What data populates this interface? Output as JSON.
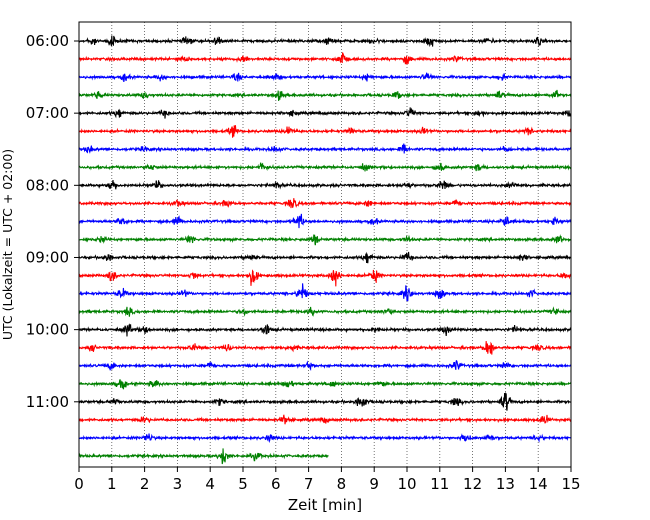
{
  "chart_data": {
    "type": "line",
    "title": "",
    "xlabel": "Zeit  [min]",
    "ylabel": "UTC (Lokalzeit = UTC + 02:00)",
    "xlim": [
      0,
      15
    ],
    "x_ticks": [
      "0",
      "1",
      "2",
      "3",
      "4",
      "5",
      "6",
      "7",
      "8",
      "9",
      "10",
      "11",
      "12",
      "13",
      "14",
      "15"
    ],
    "y_ticks": [
      "06:00",
      "07:00",
      "08:00",
      "09:00",
      "10:00",
      "11:00"
    ],
    "y_tick_rows": [
      0,
      4,
      8,
      12,
      16,
      20
    ],
    "grid": {
      "vertical": "dotted",
      "horizontal": false
    },
    "row_interval_minutes": 15,
    "row_start": "06:00",
    "row_count": 24,
    "last_row_end_minute": 7.6,
    "colors": [
      "#000000",
      "#ff0000",
      "#0000ff",
      "#008000"
    ],
    "bursts": [
      [
        [
          0.4,
          0.5
        ],
        [
          1.0,
          0.7
        ],
        [
          3.3,
          0.5
        ],
        [
          4.2,
          0.6
        ],
        [
          7.6,
          0.4
        ],
        [
          9.0,
          0.4
        ],
        [
          10.7,
          0.9
        ],
        [
          12.5,
          0.4
        ],
        [
          14.0,
          0.5
        ]
      ],
      [
        [
          3.2,
          0.4
        ],
        [
          5.0,
          0.5
        ],
        [
          8.0,
          0.9
        ],
        [
          10.0,
          0.6
        ],
        [
          11.5,
          0.4
        ]
      ],
      [
        [
          1.4,
          0.5
        ],
        [
          2.5,
          0.4
        ],
        [
          4.8,
          0.5
        ],
        [
          6.0,
          0.4
        ],
        [
          8.8,
          0.4
        ],
        [
          10.6,
          0.5
        ],
        [
          12.9,
          0.4
        ]
      ],
      [
        [
          0.6,
          0.4
        ],
        [
          2.0,
          0.4
        ],
        [
          6.1,
          0.6
        ],
        [
          9.7,
          0.4
        ],
        [
          12.8,
          0.5
        ],
        [
          14.5,
          0.6
        ]
      ],
      [
        [
          1.2,
          0.6
        ],
        [
          2.6,
          0.4
        ],
        [
          6.5,
          0.3
        ],
        [
          10.1,
          0.7
        ],
        [
          12.2,
          0.5
        ],
        [
          15.0,
          0.6
        ]
      ],
      [
        [
          4.7,
          0.7
        ],
        [
          6.4,
          0.7
        ],
        [
          8.3,
          0.4
        ],
        [
          10.5,
          0.4
        ],
        [
          13.7,
          0.4
        ]
      ],
      [
        [
          0.3,
          0.4
        ],
        [
          2.0,
          0.3
        ],
        [
          6.0,
          0.4
        ],
        [
          9.9,
          0.5
        ],
        [
          13.0,
          0.3
        ]
      ],
      [
        [
          2.2,
          0.4
        ],
        [
          5.6,
          0.6
        ],
        [
          8.7,
          0.4
        ],
        [
          11.0,
          0.7
        ],
        [
          12.2,
          0.4
        ]
      ],
      [
        [
          1.0,
          0.8
        ],
        [
          2.4,
          0.5
        ],
        [
          6.0,
          0.4
        ],
        [
          10.0,
          0.4
        ],
        [
          11.1,
          0.7
        ],
        [
          13.2,
          0.4
        ]
      ],
      [
        [
          3.0,
          0.4
        ],
        [
          4.5,
          0.5
        ],
        [
          6.5,
          0.8
        ],
        [
          8.8,
          0.4
        ],
        [
          11.5,
          0.4
        ]
      ],
      [
        [
          1.3,
          0.6
        ],
        [
          3.0,
          0.5
        ],
        [
          6.7,
          1.1
        ],
        [
          9.0,
          0.4
        ],
        [
          13.0,
          0.8
        ],
        [
          14.5,
          0.4
        ]
      ],
      [
        [
          0.7,
          0.4
        ],
        [
          3.4,
          0.6
        ],
        [
          7.2,
          0.7
        ],
        [
          10.0,
          0.4
        ],
        [
          14.6,
          0.5
        ]
      ],
      [
        [
          0.9,
          0.5
        ],
        [
          5.2,
          0.4
        ],
        [
          8.8,
          0.8
        ],
        [
          10.0,
          0.6
        ],
        [
          13.5,
          0.4
        ]
      ],
      [
        [
          1.0,
          0.8
        ],
        [
          3.5,
          0.5
        ],
        [
          5.3,
          1.2
        ],
        [
          7.8,
          1.3
        ],
        [
          9.0,
          0.9
        ],
        [
          14.8,
          0.4
        ]
      ],
      [
        [
          1.3,
          0.6
        ],
        [
          3.2,
          0.4
        ],
        [
          6.8,
          1.3
        ],
        [
          10.0,
          0.9
        ],
        [
          11.0,
          0.7
        ],
        [
          13.8,
          0.4
        ]
      ],
      [
        [
          1.5,
          0.5
        ],
        [
          5.0,
          0.4
        ],
        [
          7.1,
          0.5
        ],
        [
          9.4,
          0.5
        ],
        [
          14.5,
          0.4
        ]
      ],
      [
        [
          1.5,
          0.8
        ],
        [
          2.0,
          0.5
        ],
        [
          5.7,
          0.8
        ],
        [
          9.0,
          0.4
        ],
        [
          11.2,
          0.6
        ],
        [
          13.3,
          0.4
        ]
      ],
      [
        [
          0.4,
          0.4
        ],
        [
          3.5,
          0.5
        ],
        [
          4.5,
          0.5
        ],
        [
          6.5,
          0.4
        ],
        [
          12.5,
          1.3
        ],
        [
          14.0,
          0.4
        ]
      ],
      [
        [
          1.0,
          0.5
        ],
        [
          4.0,
          0.4
        ],
        [
          7.0,
          0.4
        ],
        [
          11.5,
          0.7
        ],
        [
          13.0,
          0.4
        ]
      ],
      [
        [
          1.3,
          0.8
        ],
        [
          2.3,
          0.5
        ],
        [
          6.4,
          0.5
        ],
        [
          7.7,
          0.4
        ],
        [
          9.2,
          0.4
        ]
      ],
      [
        [
          1.1,
          0.4
        ],
        [
          4.3,
          0.4
        ],
        [
          8.6,
          1.2
        ],
        [
          11.5,
          0.5
        ],
        [
          13.0,
          1.3
        ]
      ],
      [
        [
          2.0,
          0.4
        ],
        [
          6.3,
          0.6
        ],
        [
          7.5,
          0.4
        ],
        [
          14.2,
          0.6
        ]
      ],
      [
        [
          2.1,
          0.6
        ],
        [
          5.8,
          0.4
        ],
        [
          11.8,
          0.6
        ],
        [
          12.5,
          0.5
        ],
        [
          14.0,
          0.4
        ]
      ],
      [
        [
          4.4,
          1.2
        ],
        [
          5.4,
          0.5
        ]
      ]
    ]
  }
}
